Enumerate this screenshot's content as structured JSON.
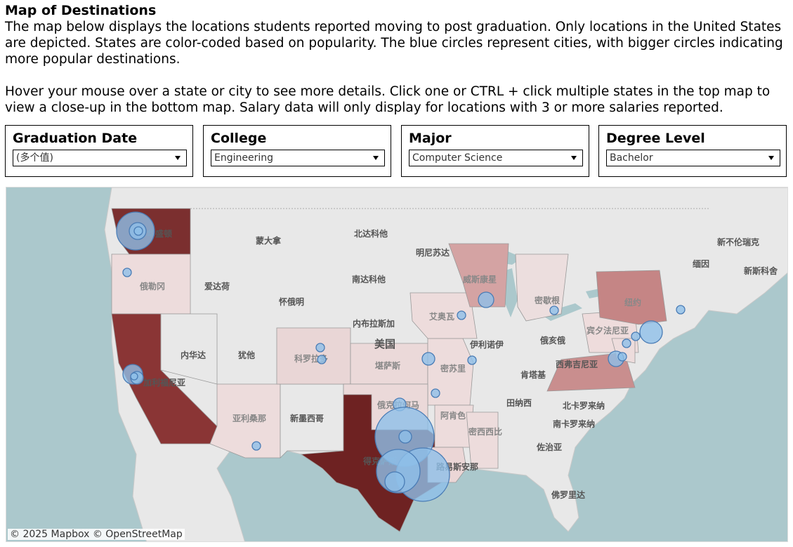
{
  "header": {
    "title": "Map of Destinations",
    "description": "The map below displays the locations students reported moving to post graduation. Only locations in the United States are depicted. States are color-coded based on popularity. The blue circles represent cities, with bigger circles indicating more popular destinations.\n\nHover your mouse over a state or city to see more details. Click one or CTRL + click multiple states in the top map to view a close-up in the bottom map. Salary data will only display for locations with 3 or more salaries reported."
  },
  "filters": [
    {
      "label": "Graduation Date",
      "value": "(多个值)"
    },
    {
      "label": "College",
      "value": "Engineering"
    },
    {
      "label": "Major",
      "value": "Computer Science"
    },
    {
      "label": "Degree Level",
      "value": "Bachelor"
    }
  ],
  "map": {
    "attribution": "© 2025 Mapbox  © OpenStreetMap",
    "colors": {
      "water": "#abc8cc",
      "land": "#e8e8e8",
      "state_high": "#7b2020",
      "state_mid": "#c98b8b",
      "state_low": "#eedcdc",
      "city": "#8fbfe8",
      "city_stroke": "#4a7cb5"
    },
    "labels": {
      "canada_montana": "蒙大拿",
      "north_dakota": "北达科他",
      "minnesota": "明尼苏达",
      "new_brunswick": "新不伦瑞克",
      "maine": "缅因",
      "nova_scotia": "新斯科舍",
      "oregon": "俄勒冈",
      "idaho": "爱达荷",
      "south_dakota": "南达科他",
      "wisconsin": "威斯康星",
      "michigan": "密歇根",
      "new_york": "纽约",
      "wyoming": "怀俄明",
      "iowa": "艾奥瓦",
      "nebraska": "内布拉斯加",
      "usa": "美国",
      "illinois": "伊利诺伊",
      "ohio": "俄亥俄",
      "pennsylvania": "宾夕法尼亚",
      "nevada": "内华达",
      "utah": "犹他",
      "colorado": "科罗拉多",
      "kansas": "堪萨斯",
      "missouri": "密苏里",
      "west_virginia": "西弗吉尼亚",
      "kentucky": "肯塔基",
      "california": "加利福尼亚",
      "tennessee": "田纳西",
      "north_carolina": "北卡罗来纳",
      "oklahoma": "俄克拉何马",
      "arizona": "亚利桑那",
      "new_mexico": "新墨西哥",
      "arkansas": "阿肯色",
      "south_carolina": "南卡罗来纳",
      "mississippi": "密西西比",
      "georgia": "佐治亚",
      "texas": "得克萨斯",
      "louisiana": "路易斯安那",
      "florida": "佛罗里达",
      "washington": "华盛顿"
    }
  }
}
